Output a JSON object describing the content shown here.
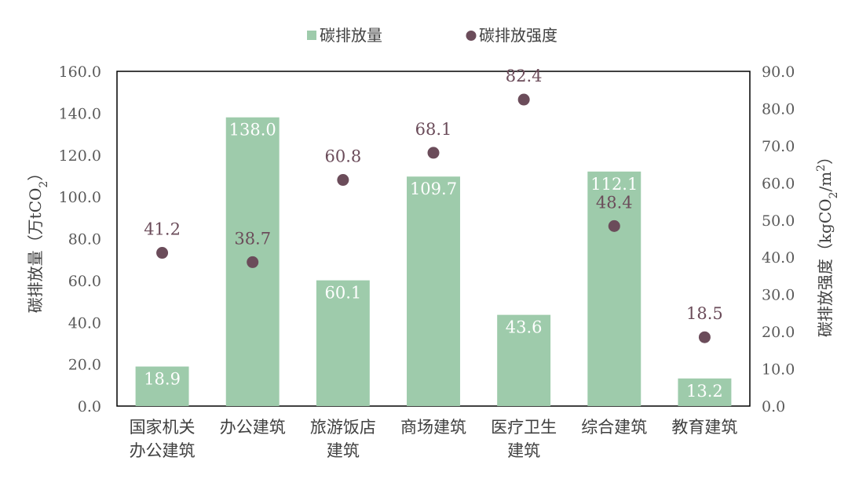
{
  "chart_data": {
    "type": "bar",
    "categories": [
      [
        "国家机关",
        "办公建筑"
      ],
      [
        "办公建筑"
      ],
      [
        "旅游饭店",
        "建筑"
      ],
      [
        "商场建筑"
      ],
      [
        "医疗卫生",
        "建筑"
      ],
      [
        "综合建筑"
      ],
      [
        "教育建筑"
      ]
    ],
    "series": [
      {
        "name": "碳排放量",
        "kind": "bar",
        "axis": "left",
        "color": "#9ecbab",
        "values": [
          18.9,
          138.0,
          60.1,
          109.7,
          43.6,
          112.1,
          13.2
        ],
        "labels": [
          "18.9",
          "138.0",
          "60.1",
          "109.7",
          "43.6",
          "112.1",
          "13.2"
        ]
      },
      {
        "name": "碳排放强度",
        "kind": "scatter",
        "axis": "right",
        "color": "#6b4c5a",
        "values": [
          41.2,
          38.7,
          60.8,
          68.1,
          82.4,
          48.4,
          18.5
        ],
        "labels": [
          "41.2",
          "38.7",
          "60.8",
          "68.1",
          "82.4",
          "48.4",
          "18.5"
        ]
      }
    ],
    "y_left": {
      "label_main": "碳排放量（万tCO",
      "label_sub": "2",
      "label_end": "）",
      "range": [
        0,
        160
      ],
      "ticks": [
        "0.0",
        "20.0",
        "40.0",
        "60.0",
        "80.0",
        "100.0",
        "120.0",
        "140.0",
        "160.0"
      ]
    },
    "y_right": {
      "label_main": "碳排放强度（kgCO",
      "label_sub": "2",
      "label_mid": "/m",
      "label_sup": "2",
      "label_end": "）",
      "range": [
        0,
        90
      ],
      "ticks": [
        "0.0",
        "10.0",
        "20.0",
        "30.0",
        "40.0",
        "50.0",
        "60.0",
        "70.0",
        "80.0",
        "90.0"
      ]
    },
    "legend_position": "top-center",
    "grid": false
  }
}
